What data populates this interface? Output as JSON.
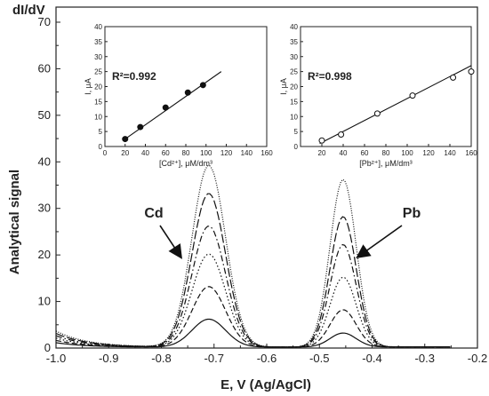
{
  "chart_data": {
    "type": "line",
    "corner_label": "dI/dV",
    "xlabel": "E, V (Ag/AgCl)",
    "ylabel": "Analytical signal",
    "xlim": [
      -1.0,
      -0.2
    ],
    "ylim": [
      0,
      70
    ],
    "xticks": [
      "-1.0",
      "-0.9",
      "-0.8",
      "-0.7",
      "-0.6",
      "-0.5",
      "-0.4",
      "-0.3",
      "-0.2"
    ],
    "yticks": [
      "0",
      "10",
      "20",
      "30",
      "40",
      "50",
      "60",
      "70"
    ],
    "annotations": [
      {
        "text": "Cd",
        "points_to": [
          -0.76,
          20
        ]
      },
      {
        "text": "Pb",
        "points_to": [
          -0.43,
          20
        ]
      }
    ],
    "series": [
      {
        "style": "solid",
        "cd_peak": 6,
        "pb_peak": 3,
        "start": 1.0
      },
      {
        "style": "dashed",
        "cd_peak": 13,
        "pb_peak": 8,
        "start": 1.5
      },
      {
        "style": "dotted",
        "cd_peak": 20,
        "pb_peak": 15,
        "start": 2.0
      },
      {
        "style": "dash-dot",
        "cd_peak": 26,
        "pb_peak": 22,
        "start": 2.5
      },
      {
        "style": "long-dash",
        "cd_peak": 33,
        "pb_peak": 28,
        "start": 3.0
      },
      {
        "style": "fine-dotted",
        "cd_peak": 39,
        "pb_peak": 36,
        "start": 3.5
      }
    ],
    "insets": [
      {
        "xlabel": "[Cd²⁺], μM/dm³",
        "ylabel": "I, μA",
        "r2": "R²=0.992",
        "xlim": [
          0,
          160
        ],
        "ylim": [
          0,
          40
        ],
        "xticks": [
          "0",
          "20",
          "40",
          "60",
          "80",
          "100",
          "120",
          "140",
          "160"
        ],
        "yticks": [
          "0",
          "5",
          "10",
          "15",
          "20",
          "25",
          "30",
          "35",
          "40"
        ],
        "marker": "filled",
        "points": [
          [
            20,
            2.5
          ],
          [
            35,
            6.5
          ],
          [
            60,
            13
          ],
          [
            82,
            18
          ],
          [
            97,
            20.5
          ]
        ],
        "fit": [
          [
            20,
            2.5
          ],
          [
            115,
            25
          ]
        ]
      },
      {
        "xlabel": "[Pb²⁺], μM/dm³",
        "ylabel": "I, μA",
        "r2": "R²=0.998",
        "xlim": [
          0,
          160
        ],
        "ylim": [
          0,
          40
        ],
        "xticks": [
          "20",
          "40",
          "60",
          "80",
          "100",
          "120",
          "140",
          "160"
        ],
        "yticks": [
          "0",
          "5",
          "10",
          "15",
          "20",
          "25",
          "30",
          "35",
          "40"
        ],
        "marker": "open",
        "points": [
          [
            20,
            2
          ],
          [
            38,
            4
          ],
          [
            72,
            11
          ],
          [
            105,
            17
          ],
          [
            143,
            23
          ],
          [
            160,
            25
          ]
        ],
        "fit": [
          [
            18,
            1
          ],
          [
            160,
            27
          ]
        ]
      }
    ]
  }
}
